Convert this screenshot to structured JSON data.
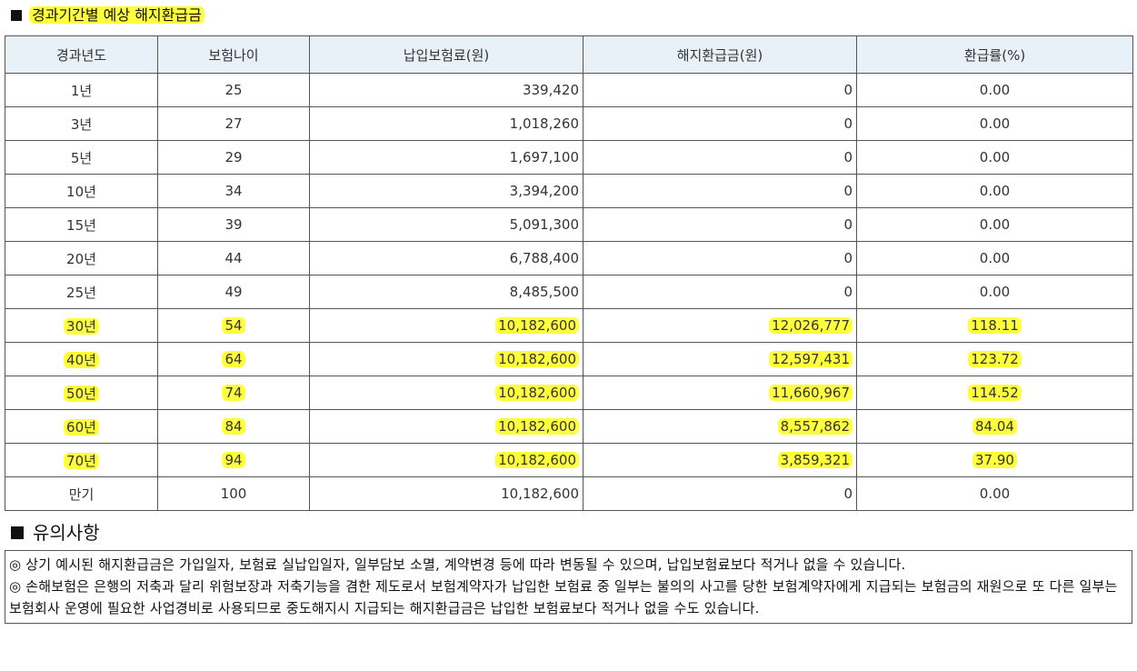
{
  "section_title": "경과기간별 예상 해지환급금",
  "table": {
    "headers": [
      "경과년도",
      "보험나이",
      "납입보험료(원)",
      "해지환급금(원)",
      "환급률(%)"
    ],
    "rows": [
      {
        "period": "1년",
        "age": "25",
        "premium": "339,420",
        "refund": "0",
        "rate": "0.00",
        "highlight": false
      },
      {
        "period": "3년",
        "age": "27",
        "premium": "1,018,260",
        "refund": "0",
        "rate": "0.00",
        "highlight": false
      },
      {
        "period": "5년",
        "age": "29",
        "premium": "1,697,100",
        "refund": "0",
        "rate": "0.00",
        "highlight": false
      },
      {
        "period": "10년",
        "age": "34",
        "premium": "3,394,200",
        "refund": "0",
        "rate": "0.00",
        "highlight": false
      },
      {
        "period": "15년",
        "age": "39",
        "premium": "5,091,300",
        "refund": "0",
        "rate": "0.00",
        "highlight": false
      },
      {
        "period": "20년",
        "age": "44",
        "premium": "6,788,400",
        "refund": "0",
        "rate": "0.00",
        "highlight": false
      },
      {
        "period": "25년",
        "age": "49",
        "premium": "8,485,500",
        "refund": "0",
        "rate": "0.00",
        "highlight": false
      },
      {
        "period": "30년",
        "age": "54",
        "premium": "10,182,600",
        "refund": "12,026,777",
        "rate": "118.11",
        "highlight": true
      },
      {
        "period": "40년",
        "age": "64",
        "premium": "10,182,600",
        "refund": "12,597,431",
        "rate": "123.72",
        "highlight": true
      },
      {
        "period": "50년",
        "age": "74",
        "premium": "10,182,600",
        "refund": "11,660,967",
        "rate": "114.52",
        "highlight": true
      },
      {
        "period": "60년",
        "age": "84",
        "premium": "10,182,600",
        "refund": "8,557,862",
        "rate": "84.04",
        "highlight": true
      },
      {
        "period": "70년",
        "age": "94",
        "premium": "10,182,600",
        "refund": "3,859,321",
        "rate": "37.90",
        "highlight": true
      },
      {
        "period": "만기",
        "age": "100",
        "premium": "10,182,600",
        "refund": "0",
        "rate": "0.00",
        "highlight": false
      }
    ]
  },
  "notes_title": "유의사항",
  "notes": [
    "◎ 상기 예시된 해지환급금은 가입일자, 보험료 실납입일자, 일부담보 소멸, 계약변경 등에 따라 변동될 수 있으며, 납입보험료보다 적거나 없을 수 있습니다.",
    "◎ 손해보험은 은행의 저축과 달리 위험보장과 저축기능을 겸한 제도로서 보험계약자가 납입한 보험료 중 일부는 불의의 사고를 당한  보험계약자에게 지급되는 보험금의 재원으로 또 다른 일부는 보험회사 운영에 필요한 사업경비로 사용되므로 중도해지시 지급되는 해지환급금은 납입한 보험료보다 적거나 없을 수도 있습니다."
  ],
  "colors": {
    "highlight": "#ffff3c",
    "header_bg": "#e8f0f8",
    "border": "#555555"
  }
}
